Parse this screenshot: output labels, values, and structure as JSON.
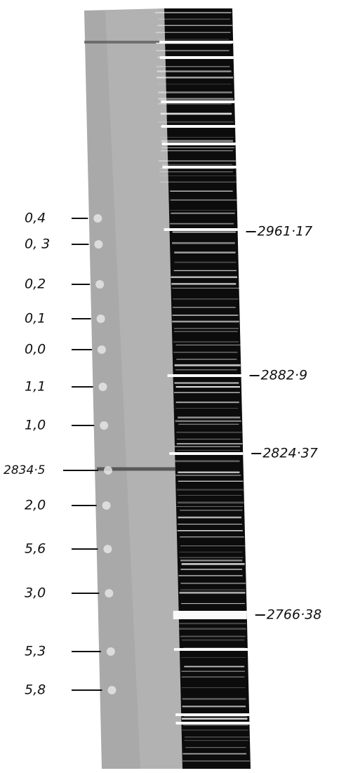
{
  "left_labels": [
    "0,4",
    "0, 3",
    "0,2",
    "0,1",
    "0,0",
    "1,1",
    "1,0",
    "2834·5",
    "2,0",
    "5,6",
    "3,0",
    "5,3",
    "5,8"
  ],
  "right_labels": [
    "2961·17",
    "2882·9",
    "2824·37",
    "2766·38"
  ]
}
